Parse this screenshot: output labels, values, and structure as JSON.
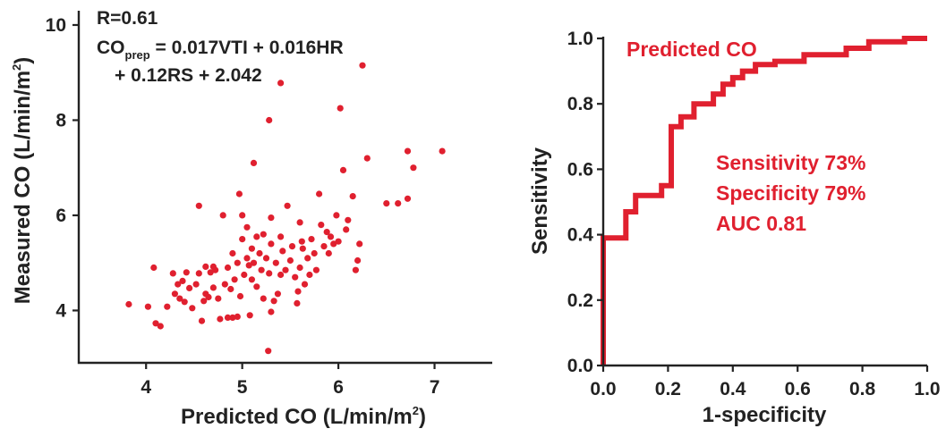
{
  "colors": {
    "series": "#e0202f",
    "axis": "#222222",
    "background": "#ffffff"
  },
  "chart_data": [
    {
      "type": "scatter",
      "title": "",
      "xlabel": "Predicted CO (L/min/m",
      "xlabel_sup": "2",
      "xlabel_close": ")",
      "ylabel": "Measured CO (L/min/m",
      "ylabel_sup": "2",
      "ylabel_close": ")",
      "xlim": [
        3.3,
        7.6
      ],
      "ylim": [
        2.9,
        10.3
      ],
      "xticks": [
        4,
        5,
        6,
        7
      ],
      "yticks": [
        4,
        6,
        8,
        10
      ],
      "grid": false,
      "annotation": {
        "r_text": "R=0.61",
        "eq_prefix": "CO",
        "eq_sub": "prep",
        "eq_rest": " = 0.017VTI + 0.016HR",
        "eq_line2": "+ 0.12RS + 2.042"
      },
      "series": [
        {
          "color": "#e0202f",
          "points": [
            [
              3.82,
              4.13
            ],
            [
              4.02,
              4.08
            ],
            [
              4.08,
              4.9
            ],
            [
              4.1,
              3.73
            ],
            [
              4.15,
              3.67
            ],
            [
              4.22,
              4.08
            ],
            [
              4.28,
              4.78
            ],
            [
              4.3,
              4.35
            ],
            [
              4.33,
              4.55
            ],
            [
              4.35,
              4.25
            ],
            [
              4.38,
              4.62
            ],
            [
              4.4,
              4.18
            ],
            [
              4.42,
              4.8
            ],
            [
              4.45,
              4.47
            ],
            [
              4.48,
              4.05
            ],
            [
              4.52,
              4.55
            ],
            [
              4.55,
              6.2
            ],
            [
              4.55,
              4.78
            ],
            [
              4.58,
              3.78
            ],
            [
              4.6,
              4.2
            ],
            [
              4.62,
              4.35
            ],
            [
              4.62,
              4.92
            ],
            [
              4.65,
              4.28
            ],
            [
              4.67,
              4.8
            ],
            [
              4.7,
              4.48
            ],
            [
              4.72,
              4.85
            ],
            [
              4.75,
              4.25
            ],
            [
              4.77,
              3.82
            ],
            [
              4.8,
              6.0
            ],
            [
              4.82,
              4.55
            ],
            [
              4.85,
              4.9
            ],
            [
              4.85,
              3.85
            ],
            [
              4.88,
              4.45
            ],
            [
              4.9,
              5.2
            ],
            [
              4.9,
              3.85
            ],
            [
              4.92,
              4.65
            ],
            [
              4.95,
              5.0
            ],
            [
              4.95,
              3.87
            ],
            [
              4.97,
              6.45
            ],
            [
              4.98,
              4.3
            ],
            [
              5.0,
              5.5
            ],
            [
              5.0,
              6.0
            ],
            [
              5.02,
              4.75
            ],
            [
              5.05,
              5.75
            ],
            [
              5.05,
              5.1
            ],
            [
              5.07,
              4.95
            ],
            [
              5.08,
              3.9
            ],
            [
              5.1,
              5.3
            ],
            [
              5.1,
              4.65
            ],
            [
              5.12,
              5.0
            ],
            [
              5.15,
              5.55
            ],
            [
              5.15,
              4.5
            ],
            [
              5.18,
              5.2
            ],
            [
              5.2,
              4.85
            ],
            [
              5.22,
              5.6
            ],
            [
              5.22,
              4.25
            ],
            [
              5.25,
              5.1
            ],
            [
              5.27,
              3.15
            ],
            [
              5.28,
              4.78
            ],
            [
              5.3,
              5.4
            ],
            [
              5.3,
              5.95
            ],
            [
              5.3,
              3.97
            ],
            [
              5.33,
              4.2
            ],
            [
              5.35,
              5.0
            ],
            [
              5.37,
              4.35
            ],
            [
              5.4,
              8.78
            ],
            [
              5.4,
              5.55
            ],
            [
              5.42,
              5.25
            ],
            [
              5.45,
              4.85
            ],
            [
              5.47,
              6.2
            ],
            [
              5.5,
              5.05
            ],
            [
              5.52,
              5.35
            ],
            [
              5.55,
              4.7
            ],
            [
              5.57,
              4.15
            ],
            [
              5.58,
              4.4
            ],
            [
              5.6,
              4.9
            ],
            [
              5.62,
              5.45
            ],
            [
              5.63,
              5.3
            ],
            [
              5.65,
              4.55
            ],
            [
              5.68,
              5.1
            ],
            [
              5.7,
              4.75
            ],
            [
              5.72,
              5.5
            ],
            [
              5.75,
              5.2
            ],
            [
              5.77,
              4.85
            ],
            [
              5.8,
              6.45
            ],
            [
              5.82,
              5.8
            ],
            [
              5.85,
              5.35
            ],
            [
              5.88,
              5.65
            ],
            [
              5.9,
              5.2
            ],
            [
              5.92,
              5.55
            ],
            [
              5.95,
              5.4
            ],
            [
              5.98,
              6.0
            ],
            [
              6.0,
              5.45
            ],
            [
              6.02,
              8.25
            ],
            [
              6.05,
              6.95
            ],
            [
              6.08,
              5.7
            ],
            [
              6.1,
              5.9
            ],
            [
              6.15,
              6.4
            ],
            [
              6.18,
              4.85
            ],
            [
              6.2,
              5.05
            ],
            [
              6.22,
              5.4
            ],
            [
              6.25,
              9.15
            ],
            [
              6.3,
              7.2
            ],
            [
              6.5,
              6.25
            ],
            [
              6.62,
              6.25
            ],
            [
              6.72,
              7.35
            ],
            [
              6.72,
              6.35
            ],
            [
              6.78,
              7.0
            ],
            [
              7.08,
              7.35
            ],
            [
              5.28,
              8.0
            ],
            [
              4.7,
              4.92
            ],
            [
              5.12,
              7.1
            ],
            [
              5.6,
              5.85
            ],
            [
              5.4,
              4.75
            ]
          ]
        }
      ]
    },
    {
      "type": "line",
      "title": "",
      "xlabel": "1-specificity",
      "ylabel": "Sensitivity",
      "xlim": [
        0,
        1
      ],
      "ylim": [
        0,
        1
      ],
      "xticks": [
        "0.0",
        "0.2",
        "0.4",
        "0.6",
        "0.8",
        "1.0"
      ],
      "yticks": [
        "0.0",
        "0.2",
        "0.4",
        "0.6",
        "0.8",
        "1.0"
      ],
      "grid": false,
      "series": [
        {
          "name": "Predicted CO",
          "color": "#e0202f",
          "x": [
            0.0,
            0.0,
            0.0,
            0.07,
            0.07,
            0.1,
            0.1,
            0.18,
            0.18,
            0.21,
            0.21,
            0.24,
            0.24,
            0.28,
            0.28,
            0.34,
            0.34,
            0.37,
            0.37,
            0.4,
            0.4,
            0.43,
            0.43,
            0.47,
            0.47,
            0.53,
            0.53,
            0.62,
            0.62,
            0.75,
            0.75,
            0.82,
            0.82,
            0.93,
            0.93,
            1.0
          ],
          "y": [
            0.0,
            0.02,
            0.39,
            0.39,
            0.47,
            0.47,
            0.52,
            0.52,
            0.55,
            0.55,
            0.73,
            0.73,
            0.76,
            0.76,
            0.8,
            0.8,
            0.83,
            0.83,
            0.86,
            0.86,
            0.88,
            0.88,
            0.9,
            0.9,
            0.92,
            0.92,
            0.93,
            0.93,
            0.95,
            0.95,
            0.97,
            0.97,
            0.99,
            0.99,
            1.0,
            1.0
          ]
        }
      ],
      "annotations": {
        "series_label": "Predicted CO",
        "sensitivity": "Sensitivity 73%",
        "specificity": "Specificity 79%",
        "auc": "AUC 0.81"
      }
    }
  ]
}
